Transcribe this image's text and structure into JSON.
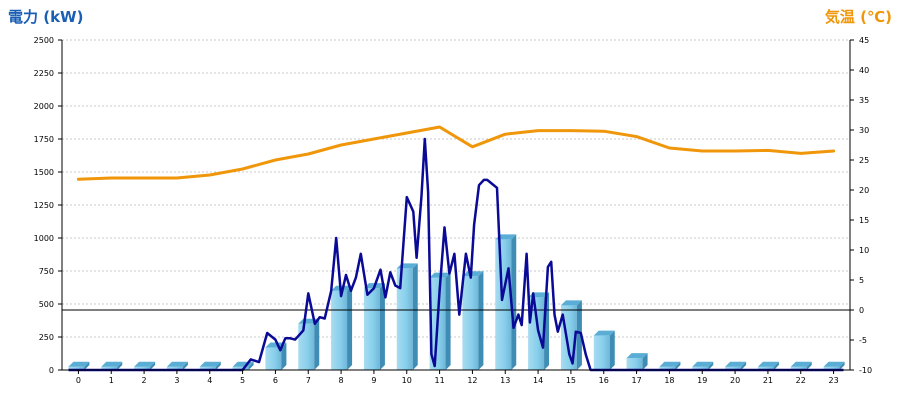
{
  "chart_data": {
    "type": "bar",
    "left_axis": {
      "label": "電力 (kW)",
      "color": "#1a5fb4",
      "ylim": [
        0,
        2500
      ],
      "ticks": [
        0,
        250,
        500,
        750,
        1000,
        1250,
        1500,
        1750,
        2000,
        2250,
        2500
      ]
    },
    "right_axis": {
      "label": "気温 (℃)",
      "color": "#f0960a",
      "ylim": [
        -10,
        45
      ],
      "ticks": [
        -10,
        -5,
        0,
        5,
        10,
        15,
        20,
        25,
        30,
        35,
        40,
        45
      ]
    },
    "categories": [
      "0",
      "1",
      "2",
      "3",
      "4",
      "5",
      "6",
      "7",
      "8",
      "9",
      "10",
      "11",
      "12",
      "13",
      "14",
      "15",
      "16",
      "17",
      "18",
      "19",
      "20",
      "21",
      "22",
      "23"
    ],
    "grid": true,
    "series": [
      {
        "kind": "bar",
        "axis": "left",
        "color": "#87ceeb",
        "values": [
          25,
          25,
          25,
          25,
          25,
          25,
          170,
          350,
          600,
          620,
          770,
          700,
          710,
          990,
          550,
          490,
          260,
          90,
          25,
          25,
          25,
          25,
          25,
          25
        ]
      },
      {
        "kind": "line",
        "axis": "left",
        "color": "#0a0a96",
        "x": [
          5.0,
          5.25,
          5.5,
          5.75,
          6.0,
          6.15,
          6.3,
          6.45,
          6.6,
          6.85,
          7.0,
          7.2,
          7.35,
          7.5,
          7.7,
          7.85,
          8.0,
          8.15,
          8.3,
          8.45,
          8.6,
          8.8,
          9.0,
          9.2,
          9.35,
          9.5,
          9.65,
          9.8,
          10.0,
          10.2,
          10.3,
          10.45,
          10.55,
          10.65,
          10.75,
          10.85,
          11.0,
          11.15,
          11.3,
          11.45,
          11.6,
          11.8,
          11.95,
          12.05,
          12.2,
          12.35,
          12.45,
          12.6,
          12.75,
          12.9,
          13.1,
          13.25,
          13.4,
          13.5,
          13.65,
          13.75,
          13.85,
          14.0,
          14.15,
          14.3,
          14.4,
          14.5,
          14.6,
          14.75,
          14.95,
          15.05,
          15.15,
          15.3,
          15.45,
          15.6,
          15.75,
          15.9,
          16.05,
          16.2,
          16.35,
          16.5,
          16.7,
          16.85,
          17.0
        ],
        "values": [
          0,
          80,
          60,
          280,
          230,
          150,
          240,
          240,
          230,
          300,
          580,
          350,
          400,
          390,
          600,
          1000,
          560,
          720,
          600,
          700,
          880,
          570,
          620,
          760,
          550,
          740,
          640,
          620,
          1310,
          1200,
          850,
          1320,
          1750,
          1350,
          120,
          30,
          600,
          1080,
          730,
          880,
          420,
          880,
          700,
          1100,
          1400,
          1440,
          1440,
          1410,
          1380,
          530,
          770,
          320,
          420,
          340,
          880,
          360,
          580,
          300,
          170,
          780,
          820,
          420,
          290,
          420,
          120,
          50,
          290,
          280,
          120,
          0,
          0,
          0,
          0,
          0,
          0,
          0,
          0,
          0,
          0
        ]
      },
      {
        "kind": "line",
        "axis": "right",
        "color": "#f0960a",
        "x": [
          0,
          1,
          2,
          3,
          4,
          5,
          6,
          7,
          8,
          9,
          10,
          11,
          12,
          13,
          14,
          15,
          16,
          17,
          18,
          19,
          20,
          21,
          22,
          23
        ],
        "values": [
          21.8,
          22,
          22,
          22,
          22.5,
          23.5,
          25,
          26,
          27.5,
          28.5,
          29.5,
          30.5,
          27.2,
          29.3,
          29.9,
          29.9,
          29.8,
          28.9,
          27,
          26.5,
          26.5,
          26.6,
          26.1,
          26.5
        ]
      }
    ],
    "reference_line": {
      "axis": "right",
      "value": 0
    }
  }
}
